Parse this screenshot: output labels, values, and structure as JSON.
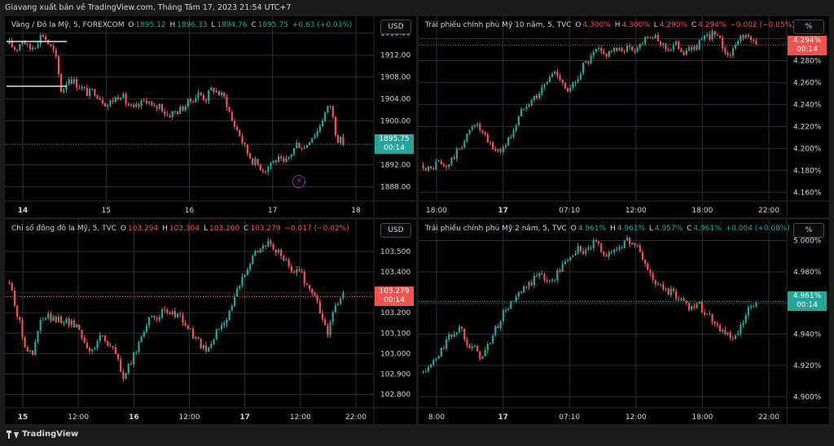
{
  "header": {
    "title": "Giavang xuất bản về TradingView.com, Tháng Tám 17, 2023 21:54 UTC+7"
  },
  "footer": {
    "brand": "TradingView",
    "logo_icon": "tradingview-logo-icon"
  },
  "colors": {
    "up": "#26a69a",
    "down": "#ef5350",
    "background": "#000000",
    "grid": "#2a2e39"
  },
  "panels": [
    {
      "id": "gold",
      "legend": {
        "symbol": "Vàng / Đô la Mỹ, 5, FOREXCOM",
        "o_label": "O",
        "o": "1895.12",
        "h_label": "H",
        "h": "1896.33",
        "l_label": "L",
        "l": "1894.76",
        "c_label": "C",
        "c": "1895.75",
        "change": "+0.63 (+0.03%)",
        "change_dir": "up"
      },
      "currency": "USD",
      "last_price": "1895.75",
      "countdown": "00:14",
      "tag_color": "green",
      "y_ticks": [
        "1916.00",
        "1912.00",
        "1908.00",
        "1904.00",
        "1900.00",
        "1892.00",
        "1888.00"
      ],
      "x_ticks": [
        "14",
        "15",
        "16",
        "17",
        "18"
      ],
      "bold_x": [
        "14"
      ],
      "has_bolt_icon": true,
      "chart_data": {
        "type": "candlestick",
        "ylim": [
          1886,
          1917
        ],
        "last": 1895.75,
        "path": [
          1914,
          1913,
          1915,
          1913,
          1914,
          1916,
          1914,
          1912,
          1905,
          1908,
          1907,
          1906,
          1905,
          1905.5,
          1904,
          1903,
          1904,
          1905,
          1903,
          1902,
          1903,
          1904,
          1902,
          1903,
          1901,
          1901.5,
          1902,
          1903,
          1904,
          1905,
          1904,
          1906,
          1905,
          1904,
          1900,
          1898,
          1895,
          1893,
          1892,
          1891,
          1892.5,
          1893,
          1892,
          1894,
          1896,
          1895,
          1897,
          1898,
          1901,
          1903,
          1897,
          1896
        ]
      }
    },
    {
      "id": "us10y",
      "legend": {
        "symbol": "Trái phiếu chính phủ Mỹ 10 năm, 5, TVC",
        "o_label": "O",
        "o": "4.300%",
        "h_label": "H",
        "h": "4.300%",
        "l_label": "L",
        "l": "4.290%",
        "c_label": "C",
        "c": "4.294%",
        "change": "−0.002 (−0.05%)",
        "change_dir": "down"
      },
      "currency": "%",
      "last_price": "4.294%",
      "countdown": "00:14",
      "tag_color": "red",
      "y_ticks": [
        "4.300%",
        "4.280%",
        "4.260%",
        "4.240%",
        "4.220%",
        "4.200%",
        "4.180%",
        "4.160%"
      ],
      "x_ticks": [
        "18:00",
        "17",
        "07:10",
        "12:00",
        "18:00",
        "22:00"
      ],
      "bold_x": [
        "17"
      ],
      "has_bolt_icon": false,
      "chart_data": {
        "type": "candlestick",
        "ylim": [
          4.155,
          4.31
        ],
        "last": 4.294,
        "path": [
          4.185,
          4.18,
          4.188,
          4.182,
          4.19,
          4.2,
          4.21,
          4.225,
          4.215,
          4.205,
          4.198,
          4.2,
          4.21,
          4.225,
          4.24,
          4.245,
          4.25,
          4.26,
          4.27,
          4.265,
          4.25,
          4.26,
          4.275,
          4.28,
          4.29,
          4.285,
          4.29,
          4.288,
          4.292,
          4.29,
          4.295,
          4.305,
          4.3,
          4.295,
          4.29,
          4.295,
          4.288,
          4.29,
          4.295,
          4.3,
          4.305,
          4.298,
          4.285,
          4.29,
          4.305,
          4.3,
          4.294
        ]
      }
    },
    {
      "id": "dxy",
      "legend": {
        "symbol": "Chỉ số đồng đô la Mỹ, 5, TVC",
        "o_label": "O",
        "o": "103.294",
        "h_label": "H",
        "h": "103.304",
        "l_label": "L",
        "l": "103.260",
        "c_label": "C",
        "c": "103.279",
        "change": "−0.017 (−0.02%)",
        "change_dir": "down"
      },
      "currency": "USD",
      "last_price": "103.279",
      "countdown": "00:14",
      "tag_color": "red",
      "y_ticks": [
        "103.500",
        "103.400",
        "103.300",
        "103.200",
        "103.100",
        "103.000",
        "102.900",
        "102.800"
      ],
      "x_ticks": [
        "15",
        "12:00",
        "16",
        "12:00",
        "17",
        "12:00",
        "22:00"
      ],
      "bold_x": [
        "15",
        "16",
        "17"
      ],
      "has_bolt_icon": false,
      "chart_data": {
        "type": "candlestick",
        "ylim": [
          102.75,
          103.6
        ],
        "last": 103.279,
        "path": [
          103.35,
          103.2,
          103.05,
          102.98,
          103.15,
          103.18,
          103.16,
          103.17,
          103.15,
          103.14,
          103.05,
          103.0,
          103.1,
          103.05,
          103.0,
          102.88,
          102.95,
          103.05,
          103.15,
          103.17,
          103.2,
          103.19,
          103.2,
          103.15,
          103.1,
          103.05,
          103.0,
          103.08,
          103.15,
          103.2,
          103.3,
          103.4,
          103.48,
          103.52,
          103.54,
          103.5,
          103.48,
          103.4,
          103.42,
          103.35,
          103.3,
          103.2,
          103.1,
          103.25,
          103.279
        ]
      }
    },
    {
      "id": "us02y",
      "legend": {
        "symbol": "Trái phiếu chính phủ Mỹ 2 năm, 5, TVC",
        "o_label": "O",
        "o": "4.961%",
        "h_label": "H",
        "h": "4.961%",
        "l_label": "L",
        "l": "4.957%",
        "c_label": "C",
        "c": "4.961%",
        "change": "+0.004 (+0.08%)",
        "change_dir": "up"
      },
      "currency": "%",
      "last_price": "4.961%",
      "countdown": "00:14",
      "tag_color": "green",
      "y_ticks": [
        "5.000%",
        "4.980%",
        "4.960%",
        "4.940%",
        "4.920%",
        "4.900%"
      ],
      "x_ticks": [
        "8:00",
        "17",
        "07:10",
        "12:00",
        "18:00",
        "22:00"
      ],
      "bold_x": [
        "17"
      ],
      "has_bolt_icon": false,
      "chart_data": {
        "type": "candlestick",
        "ylim": [
          4.895,
          5.006
        ],
        "last": 4.961,
        "path": [
          4.915,
          4.92,
          4.925,
          4.935,
          4.94,
          4.945,
          4.935,
          4.93,
          4.925,
          4.935,
          4.945,
          4.955,
          4.96,
          4.965,
          4.97,
          4.975,
          4.98,
          4.972,
          4.978,
          4.985,
          4.99,
          4.995,
          4.992,
          4.998,
          4.995,
          4.99,
          4.995,
          4.998,
          5.0,
          4.995,
          4.985,
          4.975,
          4.97,
          4.968,
          4.965,
          4.962,
          4.958,
          4.96,
          4.955,
          4.95,
          4.945,
          4.94,
          4.935,
          4.945,
          4.955,
          4.961
        ]
      }
    }
  ]
}
